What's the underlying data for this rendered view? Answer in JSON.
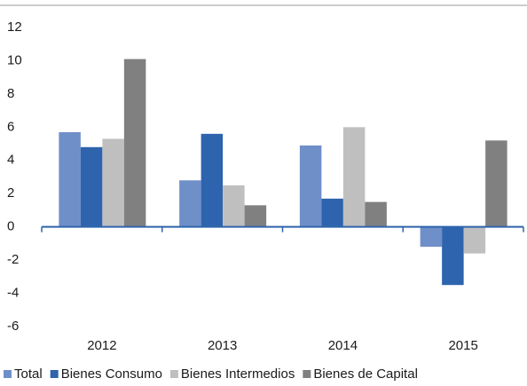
{
  "chart_data": {
    "type": "bar",
    "categories": [
      "2012",
      "2013",
      "2014",
      "2015"
    ],
    "series": [
      {
        "name": "Total",
        "color": "#6f8fc9",
        "values": [
          5.7,
          2.8,
          4.9,
          -1.2
        ]
      },
      {
        "name": "Bienes Consumo",
        "color": "#2e64ad",
        "values": [
          4.8,
          5.6,
          1.7,
          -3.5
        ]
      },
      {
        "name": "Bienes Intermedios",
        "color": "#bfbfbf",
        "values": [
          5.3,
          2.5,
          6.0,
          -1.6
        ]
      },
      {
        "name": "Bienes de Capital",
        "color": "#808080",
        "values": [
          10.1,
          1.3,
          1.5,
          5.2
        ]
      }
    ],
    "ylim": [
      -6,
      12
    ],
    "yticks": [
      -6,
      -4,
      -2,
      0,
      2,
      4,
      6,
      8,
      10,
      12
    ],
    "grid": false,
    "legend": "bottom",
    "axis_color": "#2e64ad"
  }
}
